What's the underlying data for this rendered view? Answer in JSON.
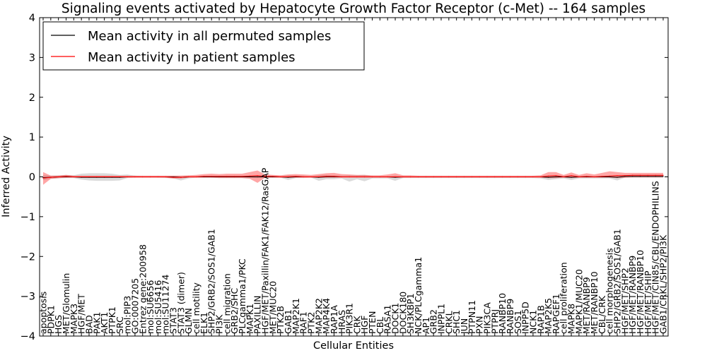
{
  "chart_data": {
    "type": "line",
    "title": "Signaling events activated by Hepatocyte Growth Factor Receptor (c-Met) -- 164 samples",
    "xlabel": "Cellular Entities",
    "ylabel": "Inferred Activity",
    "ylim": [
      -4,
      4
    ],
    "yticks": [
      -4,
      -3,
      -2,
      -1,
      0,
      1,
      2,
      3,
      4
    ],
    "grid": false,
    "legend_position": "top-left",
    "legend": [
      {
        "label": "Mean activity in all permuted samples",
        "color": "#000000"
      },
      {
        "label": "Mean activity in patient samples",
        "color": "#ff0000"
      }
    ],
    "categories": [
      "apoptosis",
      "PDPK1",
      "HGS",
      "MET/Glomulin",
      "MAPK3",
      "HGF/MET",
      "BAD",
      "PAK1",
      "AKT1",
      "PTPK1",
      "SRC",
      "mol:PIP3",
      "GO:0007205",
      "Entrez gene:200958",
      "mol:SU6656",
      "mol:SU5416",
      "mol:SU11274",
      "STAT3",
      "STAT3 (dimer)",
      "GLMN",
      "cell motility",
      "ELK1",
      "SHP2/GRB2/SOS1/GAB1",
      "PI3K",
      "cell migration",
      "GRB2/SHC",
      "PLCgamma1/PKC",
      "MAPK1",
      "PAXILLIN",
      "HGF/MET/Paxillin/FAK1/FAK12/RasGAP",
      "MET/MUC20",
      "PTK2B",
      "GAB1",
      "MAP2K1",
      "RAF1",
      "PTK2",
      "MAP2K2",
      "MAP4K4",
      "RAP1A",
      "HRAS",
      "PIK3R1",
      "CRK",
      "HGF",
      "PTEN",
      "CBL",
      "RASA1",
      "DOCK1",
      "DOCK180",
      "SH3KBP1",
      "NCK/PLCgamma1",
      "AP1",
      "GRB2",
      "INPPL1",
      "CRKL",
      "SHC1",
      "JUN",
      "PTPN11",
      "PXN",
      "PIK3CA",
      "PTPRJ",
      "RANBP10",
      "RANBP9",
      "SOS1",
      "INPP5D",
      "NCK1",
      "RAP1B",
      "MAP2K5",
      "RAPGEF1",
      "cell proliferation",
      "MAPK8",
      "MAPK1/MUC20",
      "MET/RANBP9",
      "MET/RANBP10",
      "CBL/CRK",
      "cell morphogenesis",
      "SHP2/GRB2/SOS1/GAB1",
      "HGF/MET/SHP2",
      "HGF/MET/RANBP9",
      "HGF/MET/RANBP10",
      "HGF/MET/SHIP",
      "HGF/MET/CIN85/CBL/ENDOPHILINS",
      "GAB1/CRKL/SHP2/PI3K"
    ],
    "series": [
      {
        "name": "Mean activity in all permuted samples",
        "color": "#000000",
        "values": [
          -0.02,
          -0.01,
          0.0,
          0.0,
          0.0,
          -0.01,
          -0.01,
          -0.01,
          -0.01,
          -0.01,
          -0.01,
          0.0,
          0.0,
          0.0,
          0.0,
          0.0,
          0.0,
          0.0,
          -0.01,
          0.0,
          0.0,
          0.0,
          0.0,
          0.0,
          0.0,
          0.0,
          0.0,
          0.0,
          0.0,
          0.0,
          0.0,
          0.0,
          -0.01,
          0.0,
          0.0,
          0.0,
          -0.01,
          0.0,
          0.0,
          0.0,
          0.0,
          0.0,
          0.0,
          0.0,
          0.0,
          0.0,
          -0.01,
          0.0,
          0.0,
          0.0,
          0.0,
          0.0,
          0.0,
          0.0,
          0.0,
          0.0,
          0.0,
          0.0,
          0.0,
          0.0,
          0.0,
          0.0,
          0.0,
          0.0,
          0.0,
          0.0,
          -0.01,
          0.0,
          0.0,
          -0.01,
          0.0,
          0.0,
          0.0,
          0.0,
          0.0,
          -0.01,
          0.01,
          0.01,
          0.01,
          0.01,
          0.01,
          0.01
        ],
        "band_low": [
          -0.08,
          -0.05,
          -0.04,
          -0.03,
          -0.03,
          -0.07,
          -0.09,
          -0.1,
          -0.1,
          -0.1,
          -0.09,
          -0.03,
          -0.02,
          -0.02,
          -0.02,
          -0.02,
          -0.03,
          -0.04,
          -0.09,
          -0.04,
          -0.02,
          -0.02,
          -0.02,
          -0.02,
          -0.02,
          -0.02,
          -0.02,
          -0.02,
          -0.03,
          -0.02,
          -0.02,
          -0.02,
          -0.08,
          -0.03,
          -0.03,
          -0.02,
          -0.1,
          -0.06,
          -0.06,
          -0.04,
          -0.12,
          -0.06,
          -0.11,
          -0.04,
          -0.04,
          -0.04,
          -0.1,
          -0.03,
          -0.03,
          -0.03,
          -0.03,
          -0.03,
          -0.03,
          -0.03,
          -0.03,
          -0.03,
          -0.03,
          -0.03,
          -0.03,
          -0.03,
          -0.03,
          -0.03,
          -0.03,
          -0.03,
          -0.03,
          -0.04,
          -0.08,
          -0.06,
          -0.04,
          -0.08,
          -0.04,
          -0.04,
          -0.04,
          -0.04,
          -0.04,
          -0.09,
          -0.02,
          -0.02,
          -0.02,
          -0.02,
          -0.02,
          -0.02
        ],
        "band_high": [
          0.04,
          0.03,
          0.04,
          0.05,
          0.04,
          0.08,
          0.09,
          0.09,
          0.09,
          0.08,
          0.05,
          0.06,
          0.03,
          0.02,
          0.02,
          0.02,
          0.02,
          0.02,
          0.02,
          0.02,
          0.02,
          0.02,
          0.02,
          0.02,
          0.02,
          0.02,
          0.02,
          0.02,
          0.02,
          0.02,
          0.02,
          0.02,
          0.04,
          0.03,
          0.03,
          0.02,
          0.04,
          0.05,
          0.04,
          0.03,
          0.04,
          0.04,
          0.05,
          0.02,
          0.02,
          0.02,
          0.03,
          0.02,
          0.02,
          0.02,
          0.02,
          0.02,
          0.02,
          0.02,
          0.02,
          0.02,
          0.02,
          0.02,
          0.02,
          0.02,
          0.02,
          0.02,
          0.02,
          0.02,
          0.02,
          0.02,
          0.03,
          0.03,
          0.02,
          0.03,
          0.02,
          0.02,
          0.02,
          0.02,
          0.02,
          0.03,
          0.04,
          0.04,
          0.04,
          0.04,
          0.04,
          0.04
        ]
      },
      {
        "name": "Mean activity in patient samples",
        "color": "#ff0000",
        "values": [
          -0.03,
          -0.01,
          0.0,
          0.01,
          0.0,
          0.0,
          0.0,
          0.0,
          0.0,
          0.0,
          0.0,
          0.0,
          0.0,
          0.0,
          0.0,
          0.0,
          0.0,
          -0.01,
          -0.01,
          0.0,
          0.0,
          0.01,
          0.01,
          0.01,
          0.01,
          0.01,
          0.01,
          0.02,
          0.03,
          0.01,
          0.01,
          0.0,
          0.0,
          0.01,
          0.0,
          0.0,
          0.0,
          0.01,
          0.01,
          0.0,
          0.0,
          0.0,
          0.0,
          0.0,
          0.0,
          0.0,
          0.0,
          0.0,
          0.0,
          0.0,
          0.0,
          0.0,
          0.0,
          0.0,
          0.0,
          0.0,
          0.0,
          0.0,
          0.0,
          0.0,
          0.0,
          0.0,
          0.0,
          0.0,
          0.0,
          0.0,
          0.02,
          0.03,
          0.0,
          0.03,
          0.0,
          0.01,
          0.0,
          0.01,
          0.02,
          0.03,
          0.03,
          0.04,
          0.04,
          0.04,
          0.04,
          0.04
        ],
        "band_low": [
          -0.2,
          -0.05,
          -0.03,
          -0.02,
          -0.02,
          -0.02,
          -0.02,
          -0.02,
          -0.02,
          -0.02,
          -0.02,
          -0.02,
          -0.02,
          -0.02,
          -0.02,
          -0.02,
          -0.02,
          -0.04,
          -0.04,
          -0.02,
          -0.02,
          -0.02,
          -0.02,
          -0.03,
          -0.03,
          -0.03,
          -0.03,
          -0.05,
          -0.15,
          -0.02,
          -0.02,
          -0.02,
          -0.02,
          -0.02,
          -0.02,
          -0.02,
          -0.02,
          -0.02,
          -0.02,
          -0.02,
          -0.02,
          -0.02,
          -0.02,
          -0.02,
          -0.02,
          -0.02,
          -0.02,
          -0.02,
          -0.02,
          -0.02,
          -0.02,
          -0.02,
          -0.02,
          -0.02,
          -0.02,
          -0.02,
          -0.02,
          -0.02,
          -0.02,
          -0.02,
          -0.02,
          -0.02,
          -0.02,
          -0.02,
          -0.02,
          -0.02,
          -0.03,
          -0.03,
          -0.02,
          -0.03,
          -0.02,
          -0.02,
          -0.02,
          -0.02,
          -0.02,
          -0.03,
          -0.02,
          -0.01,
          -0.01,
          -0.01,
          -0.01,
          -0.01
        ],
        "band_high": [
          0.12,
          0.03,
          0.03,
          0.05,
          0.03,
          0.03,
          0.03,
          0.03,
          0.03,
          0.03,
          0.03,
          0.03,
          0.03,
          0.03,
          0.03,
          0.03,
          0.03,
          0.03,
          0.03,
          0.04,
          0.05,
          0.07,
          0.08,
          0.07,
          0.08,
          0.08,
          0.08,
          0.12,
          0.16,
          0.06,
          0.05,
          0.04,
          0.06,
          0.07,
          0.06,
          0.05,
          0.07,
          0.09,
          0.1,
          0.07,
          0.06,
          0.05,
          0.05,
          0.04,
          0.04,
          0.06,
          0.09,
          0.04,
          0.04,
          0.03,
          0.03,
          0.03,
          0.03,
          0.03,
          0.03,
          0.03,
          0.03,
          0.03,
          0.03,
          0.03,
          0.03,
          0.03,
          0.03,
          0.03,
          0.03,
          0.04,
          0.12,
          0.12,
          0.05,
          0.11,
          0.05,
          0.09,
          0.06,
          0.1,
          0.14,
          0.12,
          0.1,
          0.1,
          0.1,
          0.1,
          0.1,
          0.1
        ]
      }
    ]
  }
}
